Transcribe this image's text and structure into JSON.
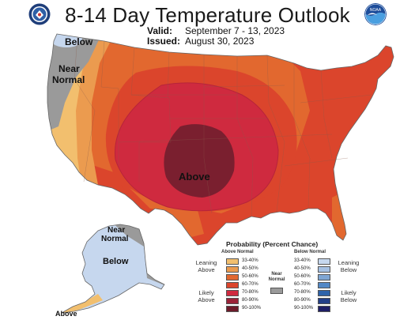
{
  "header": {
    "title": "8-14 Day Temperature Outlook",
    "valid_label": "Valid:",
    "valid_value": "September 7 - 13, 2023",
    "issued_label": "Issued:",
    "issued_value": "August 30, 2023"
  },
  "logos": {
    "left": "doc-seal-icon",
    "right": "noaa-icon",
    "right_text": "NOAA"
  },
  "map_labels": {
    "below_nw": "Below",
    "near_normal_west_1": "Near",
    "near_normal_west_2": "Normal",
    "above_center": "Above",
    "near_normal_ak_1": "Near",
    "near_normal_ak_2": "Normal",
    "below_ak": "Below",
    "above_ak": "Above"
  },
  "legend": {
    "title": "Probability (Percent Chance)",
    "above_header": "Above Normal",
    "below_header": "Below Normal",
    "leaning_above": [
      "Leaning",
      "Above"
    ],
    "likely_above": [
      "Likely",
      "Above"
    ],
    "leaning_below": [
      "Leaning",
      "Below"
    ],
    "likely_below": [
      "Likely",
      "Below"
    ],
    "near_normal": [
      "Near",
      "Normal"
    ],
    "ranges": [
      "33-40%",
      "40-50%",
      "50-60%",
      "60-70%",
      "70-80%",
      "80-90%",
      "90-100%"
    ],
    "above_colors": [
      "#f2bf6e",
      "#eb9b4f",
      "#e2682f",
      "#db452c",
      "#cf2a3f",
      "#9b2338",
      "#6d1b2a"
    ],
    "below_colors": [
      "#c6d7ee",
      "#a6c1e3",
      "#7fa6d3",
      "#5288c6",
      "#2e63aa",
      "#233f88",
      "#1f1f66"
    ],
    "near_color": "#9a9a9a"
  }
}
